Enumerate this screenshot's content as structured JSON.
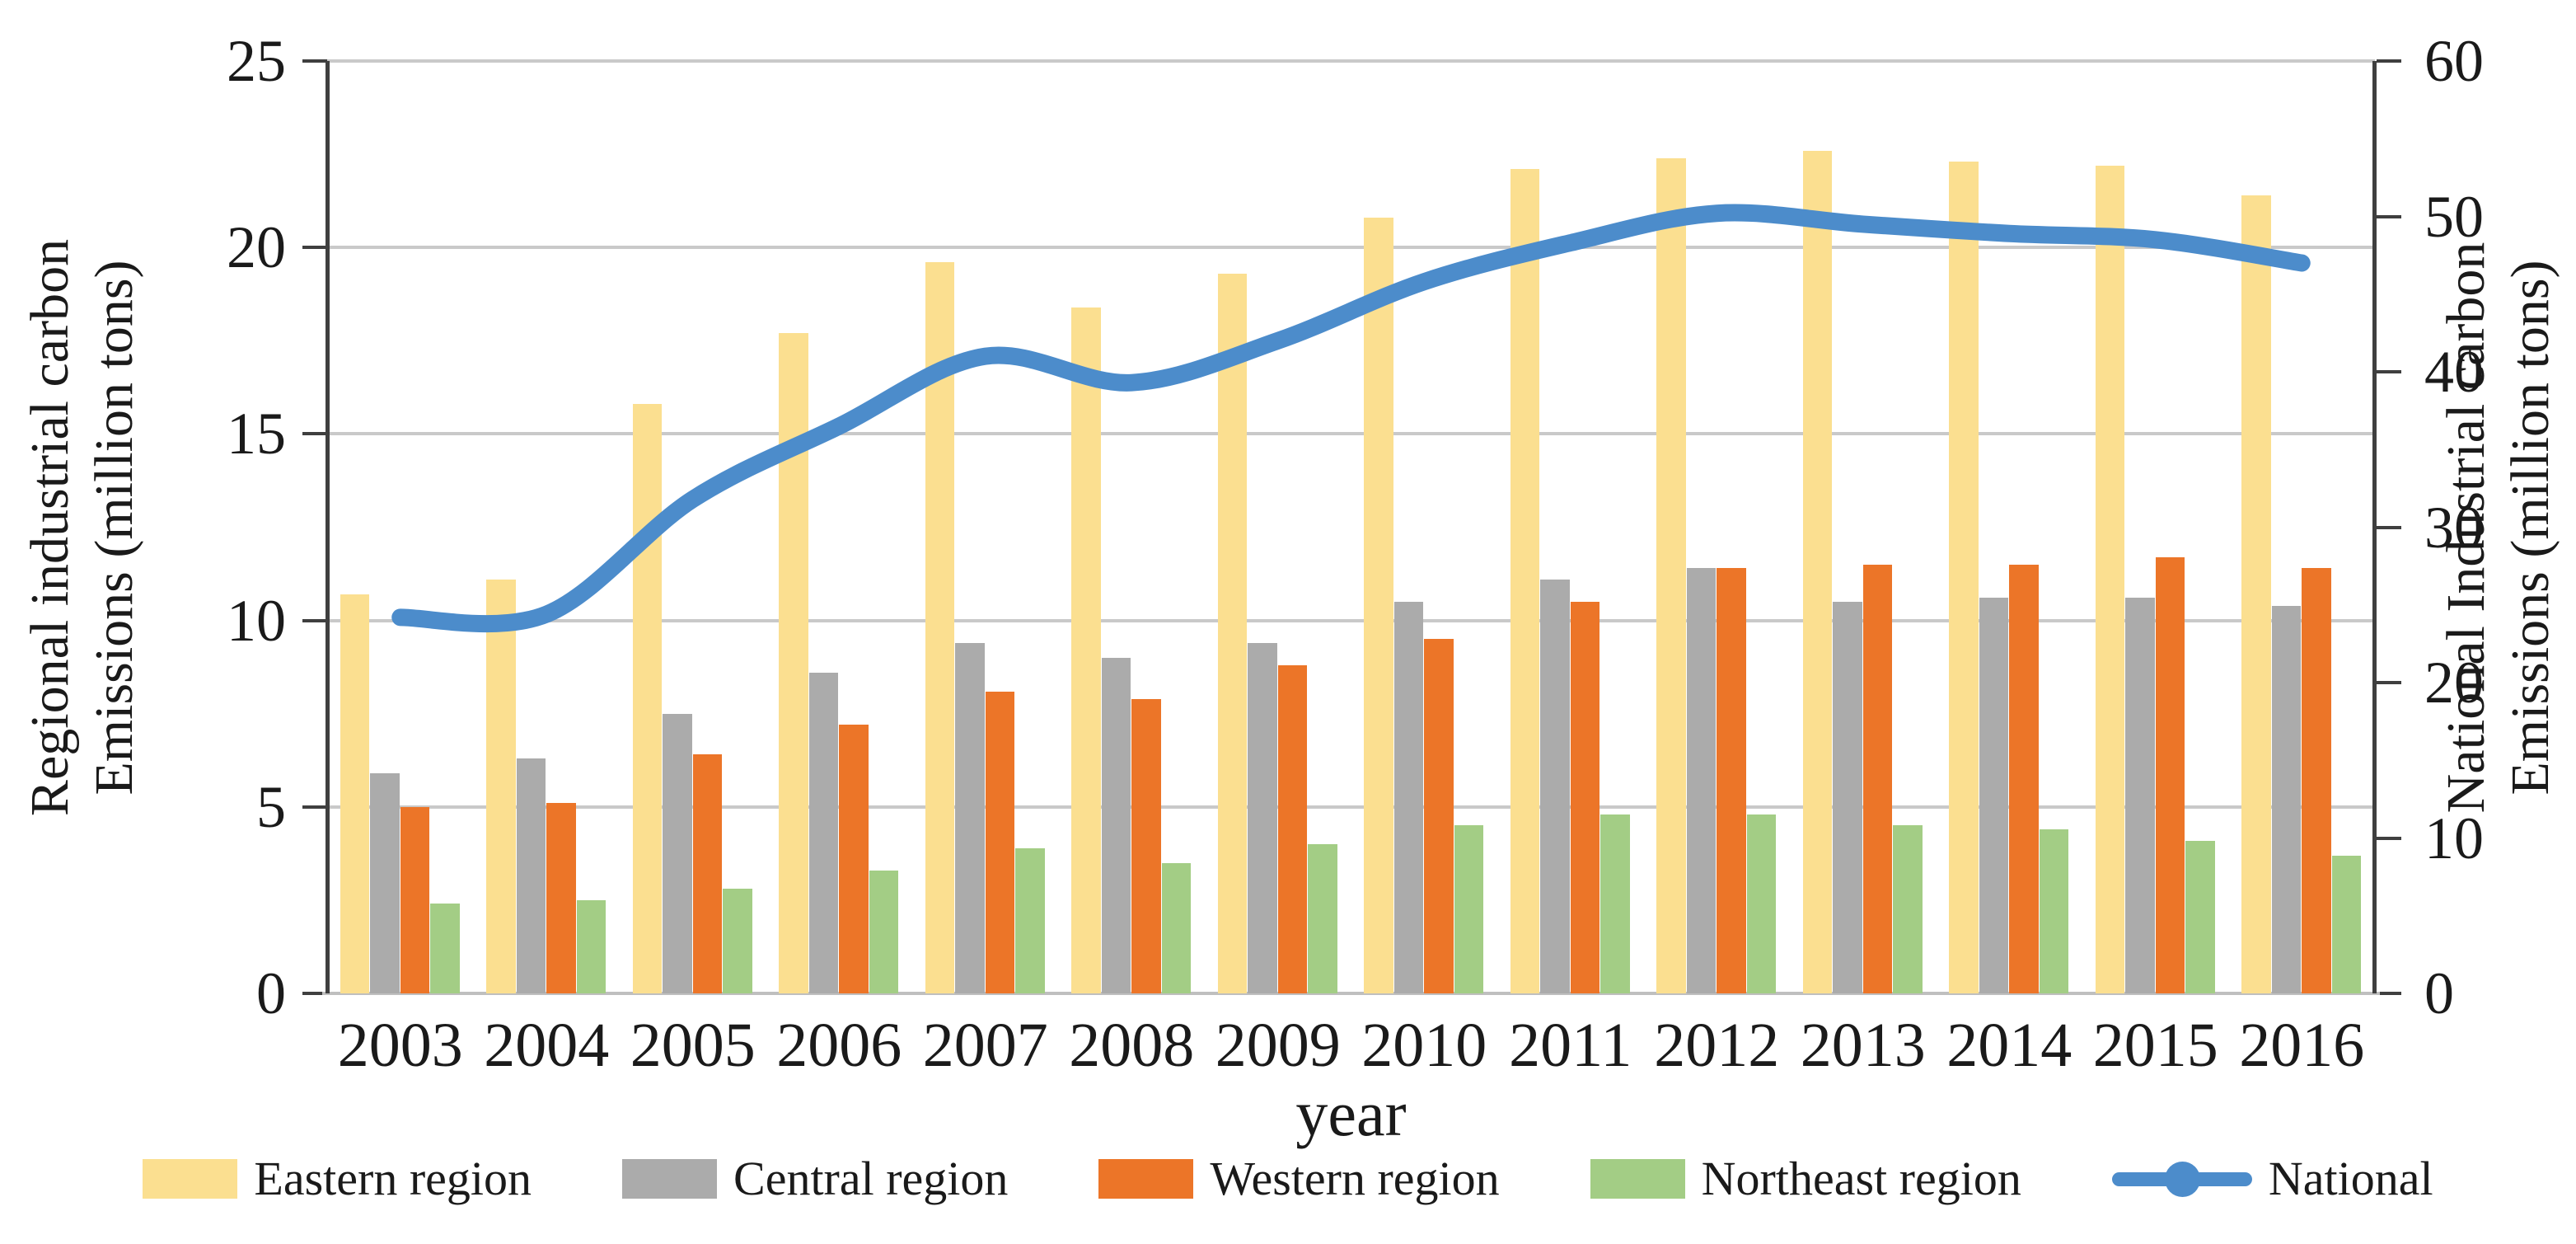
{
  "figure": {
    "x_axis_title": "year",
    "background": "#FFFFFF"
  },
  "chart_data": {
    "type": "combo",
    "categories": [
      "2003",
      "2004",
      "2005",
      "2006",
      "2007",
      "2008",
      "2009",
      "2010",
      "2011",
      "2012",
      "2013",
      "2014",
      "2015",
      "2016"
    ],
    "bar_series": [
      {
        "name": "Eastern region",
        "color": "#FBDF90",
        "axis": "left",
        "values": [
          10.7,
          11.1,
          15.8,
          17.7,
          19.6,
          18.4,
          19.3,
          20.8,
          22.1,
          22.4,
          22.6,
          22.3,
          22.2,
          21.4
        ]
      },
      {
        "name": "Central region",
        "color": "#ABABAB",
        "axis": "left",
        "values": [
          5.9,
          6.3,
          7.5,
          8.6,
          9.4,
          9.0,
          9.4,
          10.5,
          11.1,
          11.4,
          10.5,
          10.6,
          10.6,
          10.4
        ]
      },
      {
        "name": "Western region",
        "color": "#EC7528",
        "axis": "left",
        "values": [
          5.0,
          5.1,
          6.4,
          7.2,
          8.1,
          7.9,
          8.8,
          9.5,
          10.5,
          11.4,
          11.5,
          11.5,
          11.7,
          11.4
        ]
      },
      {
        "name": "Northeast region",
        "color": "#A3CD85",
        "axis": "left",
        "values": [
          2.4,
          2.5,
          2.8,
          3.3,
          3.9,
          3.5,
          4.0,
          4.5,
          4.8,
          4.8,
          4.5,
          4.4,
          4.1,
          3.7
        ]
      }
    ],
    "line_series": [
      {
        "name": "National",
        "color": "#4C8CCB",
        "axis": "right",
        "values": [
          24.2,
          24.4,
          31.8,
          36.5,
          41.0,
          39.3,
          42.0,
          45.8,
          48.3,
          50.2,
          49.5,
          48.9,
          48.5,
          47.0
        ]
      }
    ],
    "left_axis": {
      "label_line1": "Regional industrial carbon",
      "label_line2": "Emissions (million tons)",
      "min": 0,
      "max": 25,
      "ticks": [
        0,
        5,
        10,
        15,
        20,
        25
      ]
    },
    "right_axis": {
      "label_line1": "National Industrial carbon",
      "label_line2": "Emissions (million tons)",
      "min": 0,
      "max": 60,
      "ticks": [
        0,
        10,
        20,
        30,
        40,
        50,
        60
      ]
    },
    "x_axis": {
      "label": "year"
    },
    "grid": true,
    "legend_position": "bottom",
    "style": {
      "grid_color": "#C9C9C9",
      "axis_color": "#3F3F3F",
      "x_base_color": "#BFBFBF",
      "text_color": "#1A1A1A"
    }
  }
}
